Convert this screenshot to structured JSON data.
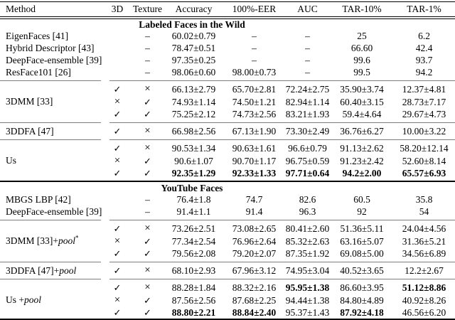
{
  "table": {
    "columns": [
      {
        "label": "Method"
      },
      {
        "label": "3D"
      },
      {
        "label": "Texture"
      },
      {
        "label": "Accuracy"
      },
      {
        "label": "100%-EER"
      },
      {
        "label": "AUC"
      },
      {
        "label": "TAR-10%"
      },
      {
        "label": "TAR-1%"
      }
    ],
    "sections": [
      {
        "title": "Labeled Faces in the Wild",
        "blocks": [
          {
            "groups": [
              {
                "method": [
                  {
                    "t": "EigenFaces [41]"
                  }
                ],
                "rows": [
                  {
                    "marks": [
                      "",
                      "–"
                    ],
                    "cells": [
                      "60.02±0.79",
                      "–",
                      "–",
                      "25",
                      "6.2"
                    ],
                    "bold": []
                  }
                ]
              },
              {
                "method": [
                  {
                    "t": "Hybrid Descriptor [43]"
                  }
                ],
                "rows": [
                  {
                    "marks": [
                      "",
                      "–"
                    ],
                    "cells": [
                      "78.47±0.51",
                      "–",
                      "–",
                      "66.60",
                      "42.4"
                    ],
                    "bold": []
                  }
                ]
              },
              {
                "method": [
                  {
                    "t": "DeepFace-ensemble [39]"
                  }
                ],
                "rows": [
                  {
                    "marks": [
                      "",
                      "–"
                    ],
                    "cells": [
                      "97.35±0.25",
                      "–",
                      "–",
                      "99.6",
                      "93.7"
                    ],
                    "bold": []
                  }
                ]
              },
              {
                "method": [
                  {
                    "t": "ResFace101 [26]"
                  }
                ],
                "rows": [
                  {
                    "marks": [
                      "",
                      "–"
                    ],
                    "cells": [
                      "98.06±0.60",
                      "98.00±0.73",
                      "–",
                      "99.5",
                      "94.2"
                    ],
                    "bold": []
                  }
                ]
              }
            ]
          },
          {
            "groups": [
              {
                "method": [
                  {
                    "t": "3DMM [33]"
                  }
                ],
                "rows": [
                  {
                    "marks": [
                      "✓",
                      "×"
                    ],
                    "cells": [
                      "66.13±2.79",
                      "65.70±2.81",
                      "72.24±2.75",
                      "35.90±3.74",
                      "12.37±4.81"
                    ],
                    "bold": []
                  },
                  {
                    "marks": [
                      "×",
                      "✓"
                    ],
                    "cells": [
                      "74.93±1.14",
                      "74.50±1.21",
                      "82.94±1.14",
                      "60.40±3.15",
                      "28.73±7.17"
                    ],
                    "bold": []
                  },
                  {
                    "marks": [
                      "✓",
                      "✓"
                    ],
                    "cells": [
                      "75.25±2.12",
                      "74.73±2.56",
                      "83.21±1.93",
                      "59.4±4.64",
                      "29.67±4.73"
                    ],
                    "bold": []
                  }
                ]
              }
            ]
          },
          {
            "groups": [
              {
                "method": [
                  {
                    "t": "3DDFA [47]"
                  }
                ],
                "rows": [
                  {
                    "marks": [
                      "✓",
                      "×"
                    ],
                    "cells": [
                      "66.98±2.56",
                      "67.13±1.90",
                      "73.30±2.49",
                      "36.76±6.27",
                      "10.00±3.22"
                    ],
                    "bold": []
                  }
                ]
              }
            ]
          },
          {
            "groups": [
              {
                "method": [
                  {
                    "t": "Us"
                  }
                ],
                "rows": [
                  {
                    "marks": [
                      "✓",
                      "×"
                    ],
                    "cells": [
                      "90.53±1.34",
                      "90.63±1.61",
                      "96.6±0.79",
                      "91.13±2.62",
                      "58.20±12.14"
                    ],
                    "bold": []
                  },
                  {
                    "marks": [
                      "×",
                      "✓"
                    ],
                    "cells": [
                      "90.6±1.07",
                      "90.70±1.17",
                      "96.75±0.59",
                      "91.23±2.42",
                      "52.60±8.14"
                    ],
                    "bold": []
                  },
                  {
                    "marks": [
                      "✓",
                      "✓"
                    ],
                    "cells": [
                      "92.35±1.29",
                      "92.33±1.33",
                      "97.71±0.64",
                      "94.2±2.00",
                      "65.57±6.93"
                    ],
                    "bold": [
                      0,
                      1,
                      2,
                      3,
                      4
                    ]
                  }
                ]
              }
            ]
          }
        ]
      },
      {
        "title": "YouTube Faces",
        "blocks": [
          {
            "groups": [
              {
                "method": [
                  {
                    "t": "MBGS LBP [42]"
                  }
                ],
                "rows": [
                  {
                    "marks": [
                      "",
                      "–"
                    ],
                    "cells": [
                      "76.4±1.8",
                      "74.7",
                      "82.6",
                      "60.5",
                      "35.8"
                    ],
                    "bold": []
                  }
                ]
              },
              {
                "method": [
                  {
                    "t": "DeepFace-ensemble [39]"
                  }
                ],
                "rows": [
                  {
                    "marks": [
                      "",
                      "–"
                    ],
                    "cells": [
                      "91.4±1.1",
                      "91.4",
                      "96.3",
                      "92",
                      "54"
                    ],
                    "bold": []
                  }
                ]
              }
            ]
          },
          {
            "groups": [
              {
                "method": [
                  {
                    "t": "3DMM [33]+"
                  },
                  {
                    "t": "pool",
                    "i": true
                  },
                  {
                    "t": "*",
                    "sup": true
                  }
                ],
                "rows": [
                  {
                    "marks": [
                      "✓",
                      "×"
                    ],
                    "cells": [
                      "73.26±2.51",
                      "73.08±2.65",
                      "80.41±2.60",
                      "51.36±5.11",
                      "24.04±4.56"
                    ],
                    "bold": []
                  },
                  {
                    "marks": [
                      "×",
                      "✓"
                    ],
                    "cells": [
                      "77.34±2.54",
                      "76.96±2.64",
                      "85.32±2.63",
                      "63.16±5.07",
                      "31.36±5.21"
                    ],
                    "bold": []
                  },
                  {
                    "marks": [
                      "✓",
                      "✓"
                    ],
                    "cells": [
                      "79.56±2.08",
                      "79.20±2.07",
                      "87.35±1.92",
                      "69.08±5.00",
                      "34.56±6.89"
                    ],
                    "bold": []
                  }
                ]
              }
            ]
          },
          {
            "groups": [
              {
                "method": [
                  {
                    "t": "3DDFA [47]+"
                  },
                  {
                    "t": "pool",
                    "i": true
                  }
                ],
                "rows": [
                  {
                    "marks": [
                      "✓",
                      "×"
                    ],
                    "cells": [
                      "68.10±2.93",
                      "67.96±3.12",
                      "74.95±3.04",
                      "40.52±3.65",
                      "12.2±2.67"
                    ],
                    "bold": []
                  }
                ]
              }
            ]
          },
          {
            "groups": [
              {
                "method": [
                  {
                    "t": "Us +"
                  },
                  {
                    "t": "pool",
                    "i": true
                  }
                ],
                "rows": [
                  {
                    "marks": [
                      "✓",
                      "×"
                    ],
                    "cells": [
                      "88.28±1.84",
                      "88.32±2.16",
                      "95.95±1.38",
                      "86.60±3.95",
                      "51.12±8.86"
                    ],
                    "bold": [
                      2,
                      4
                    ]
                  },
                  {
                    "marks": [
                      "×",
                      "✓"
                    ],
                    "cells": [
                      "87.56±2.56",
                      "87.68±2.25",
                      "94.44±1.38",
                      "84.80±4.89",
                      "40.92±8.26"
                    ],
                    "bold": []
                  },
                  {
                    "marks": [
                      "✓",
                      "✓"
                    ],
                    "cells": [
                      "88.80±2.21",
                      "88.84±2.40",
                      "95.37±1.43",
                      "87.92±4.18",
                      "46.56±6.20"
                    ],
                    "bold": [
                      0,
                      1,
                      3
                    ]
                  }
                ]
              }
            ]
          }
        ]
      }
    ]
  }
}
